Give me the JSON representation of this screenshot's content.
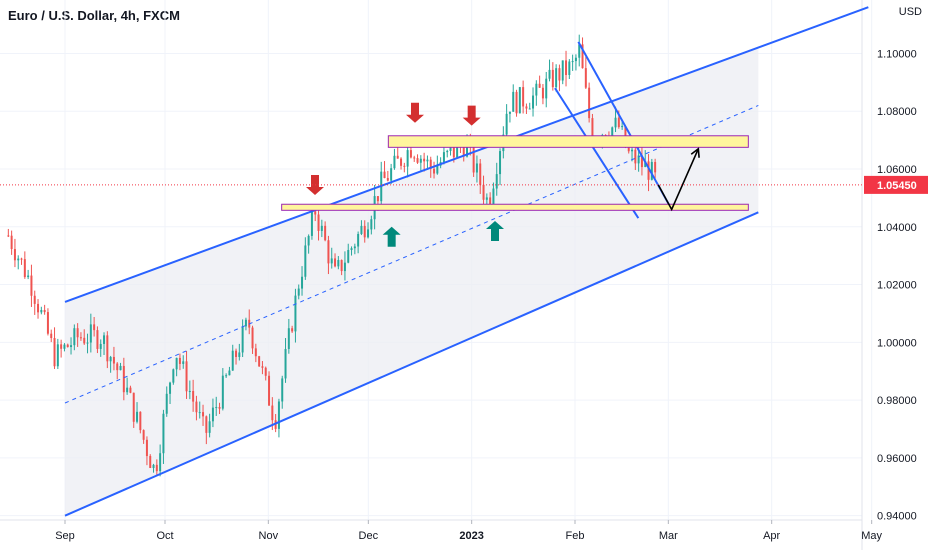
{
  "header": {
    "title": "Euro / U.S. Dollar, 4h, FXCM"
  },
  "currency_label": "USD",
  "current_price_label": "1.05450",
  "colors": {
    "up": "#26a69a",
    "down": "#ef5350",
    "channel": "#2962ff",
    "zone_fill": "#fff59d",
    "zone_border": "#9c27b0",
    "arrow_down": "#d32f2f",
    "arrow_up": "#00897b",
    "price_tag": "#f23645"
  },
  "chart_data": {
    "type": "candlestick",
    "title": "Euro / U.S. Dollar, 4h, FXCM",
    "x_tick_labels": [
      "Sep",
      "Oct",
      "Nov",
      "Dec",
      "2023",
      "Feb",
      "Mar",
      "Apr",
      "May"
    ],
    "y_tick_labels": [
      "1.10000",
      "1.08000",
      "1.06000",
      "1.04000",
      "1.02000",
      "1.00000",
      "0.98000",
      "0.96000",
      "0.94000"
    ],
    "ylim": [
      0.9385,
      1.1185
    ],
    "current_price": 1.0545,
    "price_path": [
      {
        "date": "2022-08-15",
        "price": 1.037
      },
      {
        "date": "2022-08-22",
        "price": 1.02
      },
      {
        "date": "2022-08-29",
        "price": 0.995
      },
      {
        "date": "2022-09-05",
        "price": 1.002
      },
      {
        "date": "2022-09-12",
        "price": 1.002
      },
      {
        "date": "2022-09-19",
        "price": 0.985
      },
      {
        "date": "2022-09-28",
        "price": 0.955
      },
      {
        "date": "2022-10-04",
        "price": 0.998
      },
      {
        "date": "2022-10-13",
        "price": 0.968
      },
      {
        "date": "2022-10-26",
        "price": 1.007
      },
      {
        "date": "2022-11-03",
        "price": 0.973
      },
      {
        "date": "2022-11-10",
        "price": 1.02
      },
      {
        "date": "2022-11-15",
        "price": 1.046
      },
      {
        "date": "2022-11-21",
        "price": 1.023
      },
      {
        "date": "2022-11-30",
        "price": 1.041
      },
      {
        "date": "2022-12-05",
        "price": 1.055
      },
      {
        "date": "2022-12-14",
        "price": 1.068
      },
      {
        "date": "2022-12-20",
        "price": 1.06
      },
      {
        "date": "2022-12-30",
        "price": 1.069
      },
      {
        "date": "2023-01-06",
        "price": 1.048
      },
      {
        "date": "2023-01-12",
        "price": 1.083
      },
      {
        "date": "2023-01-20",
        "price": 1.085
      },
      {
        "date": "2023-01-26",
        "price": 1.092
      },
      {
        "date": "2023-02-01",
        "price": 1.096
      },
      {
        "date": "2023-02-02",
        "price": 1.103
      },
      {
        "date": "2023-02-06",
        "price": 1.072
      },
      {
        "date": "2023-02-14",
        "price": 1.075
      },
      {
        "date": "2023-02-17",
        "price": 1.065
      },
      {
        "date": "2023-02-23",
        "price": 1.06
      },
      {
        "date": "2023-02-26",
        "price": 1.0545
      }
    ],
    "annotations": {
      "channel_upper": [
        {
          "date": "2022-09-01",
          "price": 1.014
        },
        {
          "date": "2023-04-30",
          "price": 1.116
        }
      ],
      "channel_lower": [
        {
          "date": "2022-09-01",
          "price": 0.94
        },
        {
          "date": "2023-03-28",
          "price": 1.045
        }
      ],
      "channel_mid": [
        {
          "date": "2022-09-01",
          "price": 0.979
        },
        {
          "date": "2023-03-28",
          "price": 1.082
        }
      ],
      "wedge_line": [
        {
          "date": "2023-01-26",
          "price": 1.088
        },
        {
          "date": "2023-02-20",
          "price": 1.043
        }
      ],
      "downtrend_line": [
        {
          "date": "2023-02-02",
          "price": 1.104
        },
        {
          "date": "2023-03-02",
          "price": 1.046
        }
      ],
      "resistance_zone": [
        1.0675,
        1.0715
      ],
      "support_zone": [
        1.0457,
        1.0478
      ],
      "down_arrows": [
        {
          "date": "2022-11-15",
          "price": 1.051
        },
        {
          "date": "2022-12-15",
          "price": 1.076
        },
        {
          "date": "2023-01-01",
          "price": 1.075
        }
      ],
      "up_arrows": [
        {
          "date": "2022-12-08",
          "price": 1.04
        },
        {
          "date": "2023-01-08",
          "price": 1.042
        }
      ],
      "projection_path": [
        {
          "date": "2023-02-26",
          "price": 1.0545
        },
        {
          "date": "2023-03-02",
          "price": 1.046
        },
        {
          "date": "2023-03-10",
          "price": 1.067
        }
      ]
    }
  }
}
